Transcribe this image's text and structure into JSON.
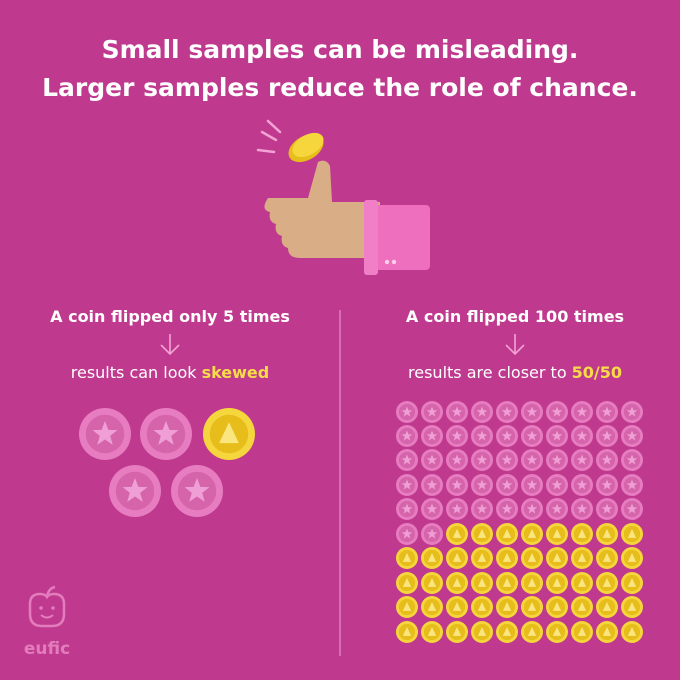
{
  "title": {
    "line1": "Small samples can be misleading.",
    "line2": "Larger samples reduce the role of chance."
  },
  "left": {
    "heading": "A coin flipped only 5 times",
    "result": "results can look",
    "highlight": "skewed"
  },
  "right": {
    "heading": "A coin flipped 100 times",
    "result": "results are closer to",
    "highlight": "50/50"
  },
  "logo": "eufic"
}
